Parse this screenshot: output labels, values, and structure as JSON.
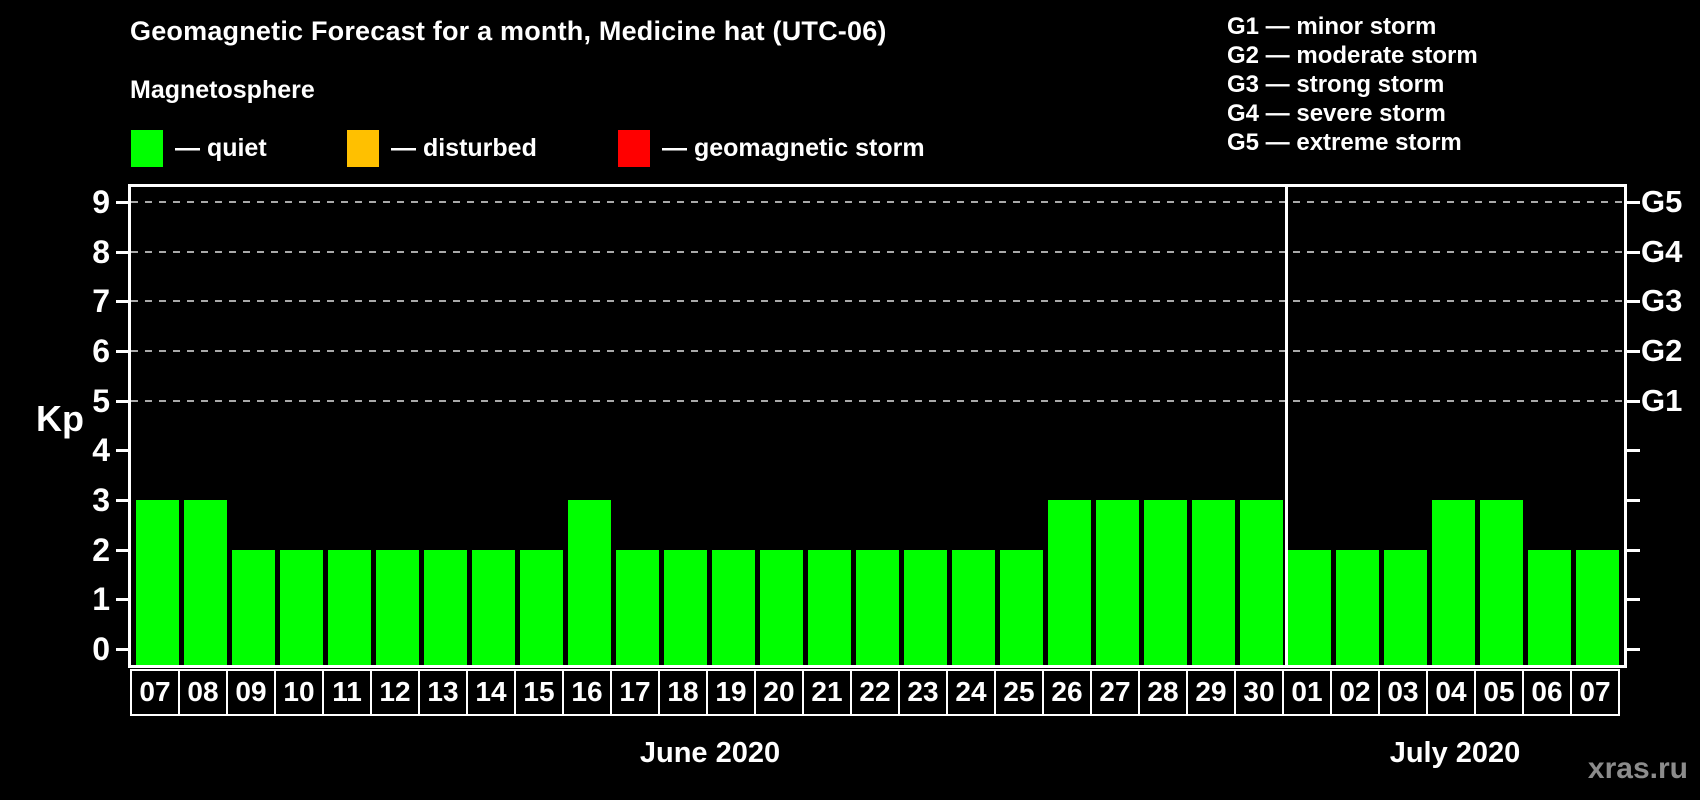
{
  "title": "Geomagnetic Forecast for a month, Medicine hat (UTC-06)",
  "legend": {
    "heading": "Magnetosphere",
    "items": [
      {
        "name": "quiet",
        "label": "— quiet",
        "color": "#00ff00"
      },
      {
        "name": "disturbed",
        "label": "— disturbed",
        "color": "#ffc000"
      },
      {
        "name": "storm",
        "label": "— geomagnetic storm",
        "color": "#ff0000"
      }
    ]
  },
  "storm_scale": [
    "G1 — minor storm",
    "G2 — moderate storm",
    "G3 — strong storm",
    "G4 — severe storm",
    "G5 — extreme storm"
  ],
  "watermark": "xras.ru",
  "chart_data": {
    "type": "bar",
    "title": "Geomagnetic Forecast for a month, Medicine hat (UTC-06)",
    "ylabel": "Kp",
    "ylim": [
      0,
      9
    ],
    "yticks": [
      0,
      1,
      2,
      3,
      4,
      5,
      6,
      7,
      8,
      9
    ],
    "grid": "dashed horizontal lines at Kp 5..9",
    "gridlines_at": [
      5,
      6,
      7,
      8,
      9
    ],
    "legend_position": "top-left",
    "right_axis": [
      {
        "kp": 5,
        "label": "G1"
      },
      {
        "kp": 6,
        "label": "G2"
      },
      {
        "kp": 7,
        "label": "G3"
      },
      {
        "kp": 8,
        "label": "G4"
      },
      {
        "kp": 9,
        "label": "G5"
      }
    ],
    "bar_colors": {
      "quiet": "#00ff00",
      "disturbed": "#ffc000",
      "storm": "#ff0000"
    },
    "months": [
      {
        "label": "June 2020",
        "days": [
          "07",
          "08",
          "09",
          "10",
          "11",
          "12",
          "13",
          "14",
          "15",
          "16",
          "17",
          "18",
          "19",
          "20",
          "21",
          "22",
          "23",
          "24",
          "25",
          "26",
          "27",
          "28",
          "29",
          "30"
        ],
        "values": [
          3,
          3,
          2,
          2,
          2,
          2,
          2,
          2,
          2,
          3,
          2,
          2,
          2,
          2,
          2,
          2,
          2,
          2,
          2,
          3,
          3,
          3,
          3,
          3
        ]
      },
      {
        "label": "July 2020",
        "days": [
          "01",
          "02",
          "03",
          "04",
          "05",
          "06",
          "07"
        ],
        "values": [
          2,
          2,
          2,
          3,
          3,
          2,
          2
        ]
      }
    ]
  }
}
